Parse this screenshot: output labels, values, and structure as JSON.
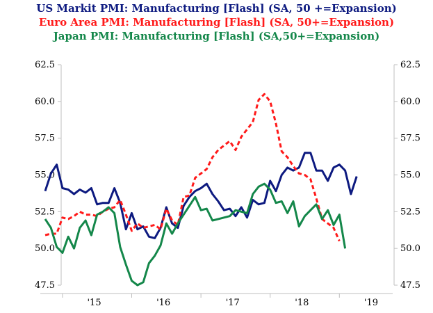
{
  "colors": {
    "us": "#0d1a80",
    "euro": "#ff1a1a",
    "japan": "#14874a",
    "axis": "#bfbfbf",
    "text": "#000000"
  },
  "chart_data": {
    "type": "line",
    "title_lines": [
      "US Markit PMI: Manufacturing [Flash] (SA, 50 +=Expansion)",
      "Euro Area PMI: Manufacturing [Flash] (SA, 50+=Expansion)",
      "Japan PMI: Manufacturing [Flash] (SA,50+=Expansion)"
    ],
    "xlabel": "",
    "ylabel": "",
    "ylim": [
      47.5,
      62.5
    ],
    "y_ticks": [
      "62.5",
      "60.0",
      "57.5",
      "55.0",
      "52.5",
      "50.0",
      "47.5"
    ],
    "y2_ticks": [
      "62.5",
      "60.0",
      "57.5",
      "55.0",
      "52.5",
      "50.0",
      "47.5"
    ],
    "x_ticks": [
      "'15",
      "'16",
      "'17",
      "'18",
      "'19"
    ],
    "grid": false,
    "legend": "none",
    "x_start": "2014-10",
    "series": [
      {
        "key": "us",
        "values": [
          53.9,
          55.1,
          55.7,
          54.1,
          54.0,
          53.7,
          54.0,
          53.8,
          54.1,
          53.0,
          53.1,
          53.1,
          54.1,
          53.1,
          51.3,
          52.4,
          51.3,
          51.5,
          50.8,
          50.7,
          51.4,
          52.8,
          51.7,
          51.4,
          52.9,
          53.5,
          53.9,
          54.1,
          54.4,
          53.7,
          53.2,
          52.6,
          52.7,
          52.2,
          52.8,
          52.1,
          53.3,
          53.0,
          53.1,
          54.6,
          53.9,
          55.0,
          55.5,
          55.3,
          55.5,
          56.5,
          56.5,
          55.3,
          55.3,
          54.6,
          55.5,
          55.7,
          55.3,
          53.7,
          54.9
        ]
      },
      {
        "key": "euro",
        "values": [
          50.9,
          51.0,
          51.0,
          52.1,
          52.0,
          52.2,
          52.5,
          52.3,
          52.3,
          52.2,
          52.5,
          52.7,
          52.8,
          53.3,
          52.3,
          51.2,
          51.7,
          51.4,
          51.5,
          51.6,
          51.3,
          52.7,
          51.9,
          51.6,
          53.5,
          53.6,
          54.8,
          55.1,
          55.4,
          56.2,
          56.7,
          57.0,
          57.3,
          56.7,
          57.6,
          58.1,
          58.6,
          60.1,
          60.5,
          60.0,
          58.5,
          56.6,
          56.2,
          55.6,
          55.1,
          55.0,
          54.7,
          53.4,
          52.0,
          51.7,
          51.4,
          50.5
        ]
      },
      {
        "key": "japan",
        "values": [
          52.0,
          51.4,
          50.1,
          49.7,
          50.8,
          50.0,
          51.4,
          51.9,
          50.9,
          52.3,
          52.5,
          52.8,
          52.4,
          50.1,
          48.9,
          47.8,
          47.5,
          47.7,
          49.0,
          49.5,
          50.2,
          51.7,
          51.0,
          51.7,
          52.3,
          52.9,
          53.5,
          52.6,
          52.7,
          51.9,
          52.0,
          52.1,
          52.2,
          52.6,
          52.5,
          52.4,
          53.7,
          54.2,
          54.4,
          54.0,
          53.1,
          53.2,
          52.4,
          53.2,
          51.5,
          52.2,
          52.6,
          53.0,
          52.0,
          52.6,
          51.6,
          52.3,
          50.0
        ]
      }
    ]
  }
}
